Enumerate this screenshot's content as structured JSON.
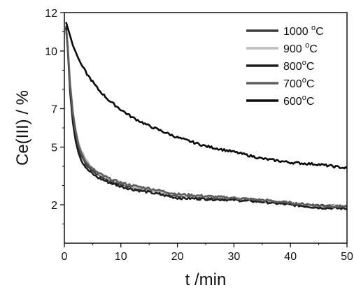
{
  "chart_data": {
    "type": "line",
    "xlabel": "t /min",
    "ylabel": "Ce(III) / %",
    "xlim": [
      0,
      50
    ],
    "ylim": [
      0,
      12
    ],
    "x_ticks": [
      0,
      10,
      20,
      30,
      40,
      50
    ],
    "x_tick_labels": [
      "0",
      "10",
      "20",
      "30",
      "40",
      "50"
    ],
    "y_ticks": [
      2,
      5,
      7,
      10,
      12
    ],
    "y_tick_labels": [
      "2",
      "5",
      "7",
      "10",
      "12"
    ],
    "grid": false,
    "legend_position": "top-right",
    "x": [
      0.3,
      0.6,
      1,
      1.5,
      2,
      2.5,
      3,
      4,
      5,
      6,
      8,
      10,
      12,
      15,
      20,
      25,
      30,
      35,
      40,
      45,
      50
    ],
    "series": [
      {
        "name": "1000 °C",
        "label_main": "1000 ",
        "label_sup": "o",
        "label_unit": "C",
        "color": "#3a3a3a",
        "values": [
          11.3,
          10.3,
          8.2,
          6.6,
          5.6,
          4.95,
          4.55,
          4.05,
          3.75,
          3.55,
          3.25,
          3.05,
          2.9,
          2.75,
          2.45,
          2.35,
          2.3,
          2.2,
          2.05,
          1.95,
          1.9
        ]
      },
      {
        "name": "900 °C",
        "label_main": "900 ",
        "label_sup": "o",
        "label_unit": "C",
        "color": "#bdbdbd",
        "values": [
          11.2,
          10.3,
          8.4,
          6.9,
          5.9,
          5.25,
          4.8,
          4.25,
          3.9,
          3.65,
          3.35,
          3.15,
          2.95,
          2.8,
          2.5,
          2.4,
          2.35,
          2.2,
          2.05,
          1.9,
          1.95
        ]
      },
      {
        "name": "800°C",
        "label_main": "800",
        "label_sup": "o",
        "label_unit": "C",
        "color": "#1e1e1e",
        "values": [
          11.2,
          10.1,
          7.9,
          6.3,
          5.3,
          4.7,
          4.3,
          3.85,
          3.6,
          3.4,
          3.15,
          2.95,
          2.8,
          2.65,
          2.35,
          2.3,
          2.25,
          2.15,
          2.0,
          1.85,
          1.8
        ]
      },
      {
        "name": "700°C",
        "label_main": "700",
        "label_sup": "o",
        "label_unit": "C",
        "color": "#5e5e5e",
        "values": [
          11.1,
          10.2,
          8.3,
          6.8,
          5.8,
          5.1,
          4.7,
          4.15,
          3.85,
          3.65,
          3.35,
          3.15,
          3.0,
          2.85,
          2.55,
          2.45,
          2.35,
          2.25,
          2.1,
          1.95,
          1.9
        ]
      },
      {
        "name": "600°C",
        "label_main": "600",
        "label_sup": "o",
        "label_unit": "C",
        "color": "#0a0a0a",
        "values": [
          11.5,
          11.2,
          10.8,
          10.3,
          9.95,
          9.6,
          9.3,
          8.8,
          8.4,
          8.0,
          7.4,
          6.95,
          6.55,
          6.1,
          5.5,
          5.05,
          4.75,
          4.4,
          4.2,
          4.1,
          3.9
        ]
      }
    ]
  }
}
